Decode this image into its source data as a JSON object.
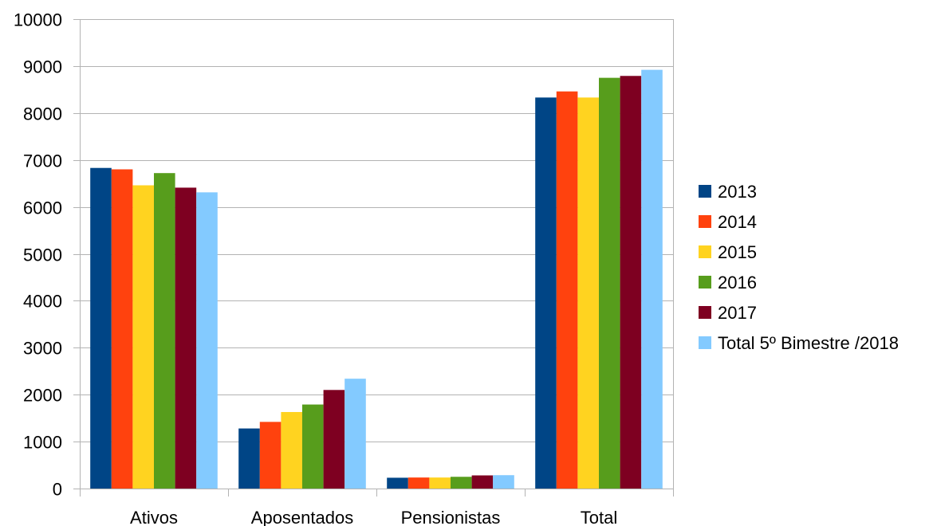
{
  "chart_data": {
    "type": "bar",
    "title": "",
    "xlabel": "",
    "ylabel": "",
    "ylim": [
      0,
      10000
    ],
    "yticks": [
      0,
      1000,
      2000,
      3000,
      4000,
      5000,
      6000,
      7000,
      8000,
      9000,
      10000
    ],
    "grid": true,
    "legend_position": "right",
    "categories": [
      "Ativos",
      "Aposentados",
      "Pensionistas",
      "Total"
    ],
    "series": [
      {
        "name": "2013",
        "color": "#004586",
        "values": [
          6830,
          1280,
          230,
          8330
        ]
      },
      {
        "name": "2014",
        "color": "#ff420e",
        "values": [
          6800,
          1420,
          235,
          8460
        ]
      },
      {
        "name": "2015",
        "color": "#ffd320",
        "values": [
          6460,
          1630,
          235,
          8330
        ]
      },
      {
        "name": "2016",
        "color": "#579d1c",
        "values": [
          6720,
          1790,
          250,
          8750
        ]
      },
      {
        "name": "2017",
        "color": "#7e0021",
        "values": [
          6410,
          2100,
          280,
          8790
        ]
      },
      {
        "name": "Total 5º Bimestre /2018",
        "color": "#83caff",
        "values": [
          6310,
          2340,
          285,
          8920
        ]
      }
    ]
  }
}
